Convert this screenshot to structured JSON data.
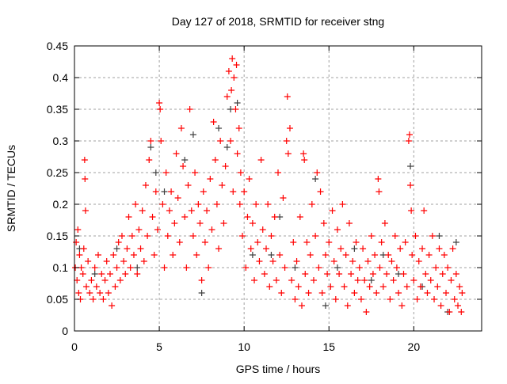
{
  "chart_data": {
    "type": "scatter",
    "title": "Day 127 of 2018, SRMTID for receiver stng",
    "xlabel": "GPS time / hours",
    "ylabel": "SRMTID / TECUs",
    "xlim": [
      0,
      24
    ],
    "ylim": [
      0,
      0.45
    ],
    "xticks": [
      0,
      5,
      10,
      15,
      20
    ],
    "xtick_labels": [
      "0",
      "5",
      "10",
      "15",
      "20"
    ],
    "yticks": [
      0,
      0.05,
      0.1,
      0.15,
      0.2,
      0.25,
      0.3,
      0.35,
      0.4,
      0.45
    ],
    "ytick_labels": [
      "0",
      "0.05",
      "0.1",
      "0.15",
      "0.2",
      "0.25",
      "0.3",
      "0.35",
      "0.4",
      "0.45"
    ],
    "grid": true,
    "legend": "none",
    "series": [
      {
        "name": "red",
        "color": "#ff0000",
        "marker": "+",
        "points": [
          [
            0.05,
            0.1
          ],
          [
            0.1,
            0.14
          ],
          [
            0.15,
            0.08
          ],
          [
            0.2,
            0.16
          ],
          [
            0.25,
            0.06
          ],
          [
            0.3,
            0.12
          ],
          [
            0.35,
            0.05
          ],
          [
            0.4,
            0.1
          ],
          [
            0.5,
            0.09
          ],
          [
            0.55,
            0.13
          ],
          [
            0.6,
            0.27
          ],
          [
            0.62,
            0.24
          ],
          [
            0.65,
            0.19
          ],
          [
            0.7,
            0.07
          ],
          [
            0.8,
            0.11
          ],
          [
            0.9,
            0.06
          ],
          [
            1.0,
            0.08
          ],
          [
            1.1,
            0.05
          ],
          [
            1.2,
            0.1
          ],
          [
            1.3,
            0.07
          ],
          [
            1.4,
            0.12
          ],
          [
            1.5,
            0.06
          ],
          [
            1.6,
            0.09
          ],
          [
            1.7,
            0.05
          ],
          [
            1.8,
            0.08
          ],
          [
            1.9,
            0.11
          ],
          [
            2.0,
            0.06
          ],
          [
            2.1,
            0.09
          ],
          [
            2.2,
            0.04
          ],
          [
            2.3,
            0.12
          ],
          [
            2.4,
            0.07
          ],
          [
            2.5,
            0.1
          ],
          [
            2.6,
            0.14
          ],
          [
            2.7,
            0.08
          ],
          [
            2.8,
            0.15
          ],
          [
            2.9,
            0.11
          ],
          [
            3.0,
            0.09
          ],
          [
            3.1,
            0.13
          ],
          [
            3.2,
            0.18
          ],
          [
            3.3,
            0.1
          ],
          [
            3.4,
            0.15
          ],
          [
            3.5,
            0.12
          ],
          [
            3.6,
            0.2
          ],
          [
            3.7,
            0.09
          ],
          [
            3.8,
            0.16
          ],
          [
            3.9,
            0.13
          ],
          [
            4.0,
            0.19
          ],
          [
            4.1,
            0.11
          ],
          [
            4.2,
            0.23
          ],
          [
            4.3,
            0.15
          ],
          [
            4.4,
            0.27
          ],
          [
            4.5,
            0.3
          ],
          [
            4.6,
            0.18
          ],
          [
            4.7,
            0.12
          ],
          [
            4.8,
            0.22
          ],
          [
            4.9,
            0.16
          ],
          [
            5.0,
            0.36
          ],
          [
            5.05,
            0.35
          ],
          [
            5.1,
            0.3
          ],
          [
            5.2,
            0.2
          ],
          [
            5.3,
            0.1
          ],
          [
            5.4,
            0.25
          ],
          [
            5.5,
            0.15
          ],
          [
            5.6,
            0.19
          ],
          [
            5.7,
            0.22
          ],
          [
            5.8,
            0.12
          ],
          [
            5.9,
            0.17
          ],
          [
            6.0,
            0.28
          ],
          [
            6.1,
            0.21
          ],
          [
            6.2,
            0.14
          ],
          [
            6.3,
            0.32
          ],
          [
            6.4,
            0.26
          ],
          [
            6.5,
            0.18
          ],
          [
            6.6,
            0.1
          ],
          [
            6.7,
            0.23
          ],
          [
            6.8,
            0.35
          ],
          [
            6.9,
            0.19
          ],
          [
            7.0,
            0.15
          ],
          [
            7.1,
            0.25
          ],
          [
            7.2,
            0.12
          ],
          [
            7.3,
            0.2
          ],
          [
            7.4,
            0.17
          ],
          [
            7.5,
            0.08
          ],
          [
            7.6,
            0.22
          ],
          [
            7.7,
            0.14
          ],
          [
            7.8,
            0.19
          ],
          [
            7.9,
            0.1
          ],
          [
            8.0,
            0.24
          ],
          [
            8.1,
            0.16
          ],
          [
            8.2,
            0.33
          ],
          [
            8.3,
            0.27
          ],
          [
            8.4,
            0.2
          ],
          [
            8.5,
            0.13
          ],
          [
            8.6,
            0.3
          ],
          [
            8.7,
            0.23
          ],
          [
            8.8,
            0.17
          ],
          [
            8.9,
            0.26
          ],
          [
            9.0,
            0.37
          ],
          [
            9.1,
            0.41
          ],
          [
            9.2,
            0.3
          ],
          [
            9.25,
            0.38
          ],
          [
            9.3,
            0.43
          ],
          [
            9.35,
            0.22
          ],
          [
            9.4,
            0.4
          ],
          [
            9.5,
            0.35
          ],
          [
            9.55,
            0.42
          ],
          [
            9.6,
            0.28
          ],
          [
            9.7,
            0.32
          ],
          [
            9.75,
            0.2
          ],
          [
            9.8,
            0.25
          ],
          [
            9.9,
            0.15
          ],
          [
            10.0,
            0.22
          ],
          [
            10.1,
            0.1
          ],
          [
            10.2,
            0.18
          ],
          [
            10.3,
            0.24
          ],
          [
            10.4,
            0.13
          ],
          [
            10.5,
            0.17
          ],
          [
            10.6,
            0.08
          ],
          [
            10.7,
            0.2
          ],
          [
            10.8,
            0.14
          ],
          [
            10.9,
            0.11
          ],
          [
            11.0,
            0.27
          ],
          [
            11.1,
            0.16
          ],
          [
            11.2,
            0.09
          ],
          [
            11.3,
            0.13
          ],
          [
            11.4,
            0.2
          ],
          [
            11.5,
            0.07
          ],
          [
            11.6,
            0.15
          ],
          [
            11.7,
            0.11
          ],
          [
            11.8,
            0.18
          ],
          [
            11.9,
            0.08
          ],
          [
            12.0,
            0.25
          ],
          [
            12.1,
            0.12
          ],
          [
            12.2,
            0.06
          ],
          [
            12.3,
            0.21
          ],
          [
            12.4,
            0.1
          ],
          [
            12.5,
            0.3
          ],
          [
            12.55,
            0.37
          ],
          [
            12.6,
            0.28
          ],
          [
            12.7,
            0.32
          ],
          [
            12.8,
            0.08
          ],
          [
            12.9,
            0.14
          ],
          [
            13.0,
            0.05
          ],
          [
            13.1,
            0.11
          ],
          [
            13.2,
            0.07
          ],
          [
            13.3,
            0.18
          ],
          [
            13.4,
            0.04
          ],
          [
            13.5,
            0.28
          ],
          [
            13.55,
            0.27
          ],
          [
            13.6,
            0.09
          ],
          [
            13.7,
            0.14
          ],
          [
            13.8,
            0.06
          ],
          [
            13.9,
            0.12
          ],
          [
            14.0,
            0.2
          ],
          [
            14.1,
            0.08
          ],
          [
            14.2,
            0.15
          ],
          [
            14.3,
            0.25
          ],
          [
            14.4,
            0.1
          ],
          [
            14.5,
            0.22
          ],
          [
            14.6,
            0.06
          ],
          [
            14.7,
            0.17
          ],
          [
            14.8,
            0.12
          ],
          [
            14.9,
            0.09
          ],
          [
            15.0,
            0.14
          ],
          [
            15.1,
            0.07
          ],
          [
            15.2,
            0.19
          ],
          [
            15.3,
            0.11
          ],
          [
            15.4,
            0.05
          ],
          [
            15.5,
            0.16
          ],
          [
            15.6,
            0.09
          ],
          [
            15.7,
            0.13
          ],
          [
            15.8,
            0.2
          ],
          [
            15.9,
            0.07
          ],
          [
            16.0,
            0.12
          ],
          [
            16.1,
            0.04
          ],
          [
            16.2,
            0.17
          ],
          [
            16.3,
            0.09
          ],
          [
            16.4,
            0.11
          ],
          [
            16.5,
            0.06
          ],
          [
            16.6,
            0.14
          ],
          [
            16.7,
            0.08
          ],
          [
            16.8,
            0.1
          ],
          [
            16.9,
            0.05
          ],
          [
            17.0,
            0.13
          ],
          [
            17.1,
            0.08
          ],
          [
            17.2,
            0.03
          ],
          [
            17.3,
            0.11
          ],
          [
            17.4,
            0.07
          ],
          [
            17.5,
            0.15
          ],
          [
            17.6,
            0.09
          ],
          [
            17.7,
            0.12
          ],
          [
            17.8,
            0.06
          ],
          [
            17.9,
            0.24
          ],
          [
            17.95,
            0.22
          ],
          [
            18.0,
            0.1
          ],
          [
            18.1,
            0.14
          ],
          [
            18.2,
            0.07
          ],
          [
            18.3,
            0.17
          ],
          [
            18.4,
            0.09
          ],
          [
            18.5,
            0.12
          ],
          [
            18.6,
            0.05
          ],
          [
            18.7,
            0.11
          ],
          [
            18.8,
            0.08
          ],
          [
            18.9,
            0.15
          ],
          [
            19.0,
            0.1
          ],
          [
            19.1,
            0.06
          ],
          [
            19.2,
            0.13
          ],
          [
            19.3,
            0.04
          ],
          [
            19.4,
            0.09
          ],
          [
            19.5,
            0.14
          ],
          [
            19.6,
            0.07
          ],
          [
            19.7,
            0.3
          ],
          [
            19.75,
            0.31
          ],
          [
            19.8,
            0.23
          ],
          [
            19.85,
            0.19
          ],
          [
            19.9,
            0.12
          ],
          [
            20.0,
            0.08
          ],
          [
            20.1,
            0.15
          ],
          [
            20.2,
            0.05
          ],
          [
            20.3,
            0.11
          ],
          [
            20.4,
            0.07
          ],
          [
            20.5,
            0.13
          ],
          [
            20.6,
            0.19
          ],
          [
            20.7,
            0.09
          ],
          [
            20.8,
            0.06
          ],
          [
            20.9,
            0.12
          ],
          [
            21.0,
            0.08
          ],
          [
            21.1,
            0.15
          ],
          [
            21.2,
            0.05
          ],
          [
            21.3,
            0.1
          ],
          [
            21.4,
            0.07
          ],
          [
            21.5,
            0.13
          ],
          [
            21.6,
            0.04
          ],
          [
            21.7,
            0.09
          ],
          [
            21.8,
            0.12
          ],
          [
            21.9,
            0.06
          ],
          [
            22.0,
            0.1
          ],
          [
            22.1,
            0.03
          ],
          [
            22.2,
            0.08
          ],
          [
            22.3,
            0.13
          ],
          [
            22.4,
            0.05
          ],
          [
            22.5,
            0.09
          ],
          [
            22.6,
            0.04
          ],
          [
            22.7,
            0.07
          ],
          [
            22.8,
            0.03
          ],
          [
            22.85,
            0.06
          ]
        ]
      },
      {
        "name": "gray",
        "color": "#404040",
        "marker": "+",
        "points": [
          [
            0.3,
            0.13
          ],
          [
            1.2,
            0.09
          ],
          [
            2.5,
            0.13
          ],
          [
            3.7,
            0.1
          ],
          [
            4.5,
            0.29
          ],
          [
            4.8,
            0.25
          ],
          [
            5.3,
            0.22
          ],
          [
            6.5,
            0.27
          ],
          [
            7.0,
            0.31
          ],
          [
            7.5,
            0.06
          ],
          [
            8.5,
            0.32
          ],
          [
            9.0,
            0.29
          ],
          [
            9.2,
            0.35
          ],
          [
            9.6,
            0.36
          ],
          [
            10.5,
            0.12
          ],
          [
            11.6,
            0.12
          ],
          [
            12.1,
            0.18
          ],
          [
            13.0,
            0.1
          ],
          [
            14.2,
            0.24
          ],
          [
            14.8,
            0.04
          ],
          [
            15.5,
            0.1
          ],
          [
            16.5,
            0.13
          ],
          [
            17.5,
            0.08
          ],
          [
            18.2,
            0.12
          ],
          [
            19.1,
            0.09
          ],
          [
            19.8,
            0.26
          ],
          [
            20.5,
            0.07
          ],
          [
            21.5,
            0.15
          ],
          [
            22.0,
            0.03
          ],
          [
            22.5,
            0.14
          ]
        ]
      }
    ]
  }
}
